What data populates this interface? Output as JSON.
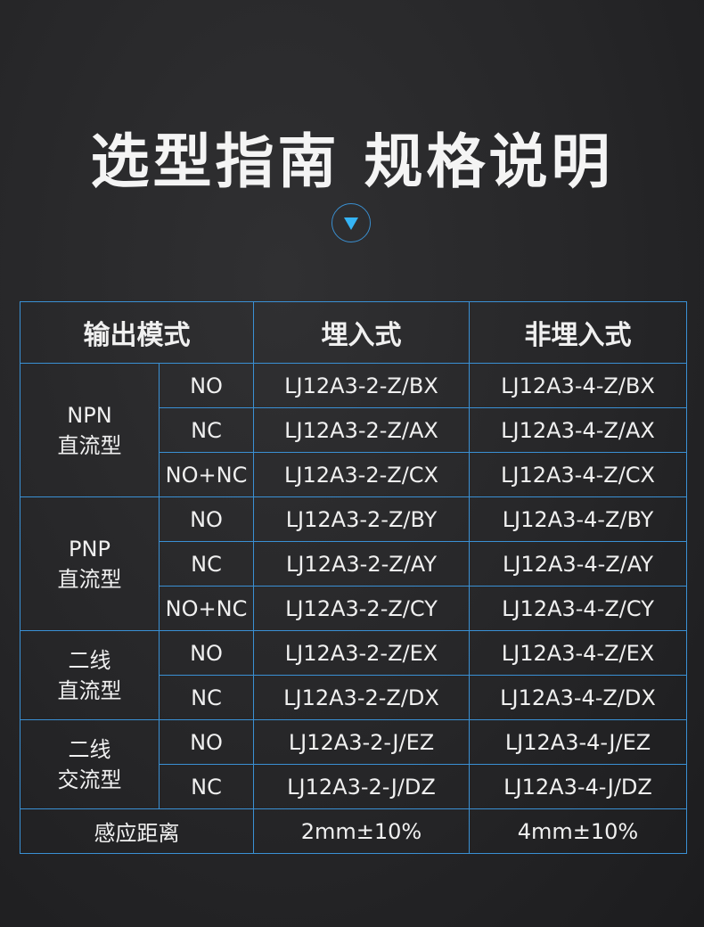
{
  "title": "选型指南 规格说明",
  "icon": "down-triangle-icon",
  "accent": "#35b4f5",
  "table": {
    "headers": [
      "输出模式",
      "埋入式",
      "非埋入式"
    ],
    "groups": [
      {
        "name_line1": "NPN",
        "name_line2": "直流型",
        "rows": [
          {
            "mode": "NO",
            "flush": "LJ12A3-2-Z/BX",
            "nonflush": "LJ12A3-4-Z/BX"
          },
          {
            "mode": "NC",
            "flush": "LJ12A3-2-Z/AX",
            "nonflush": "LJ12A3-4-Z/AX"
          },
          {
            "mode": "NO+NC",
            "flush": "LJ12A3-2-Z/CX",
            "nonflush": "LJ12A3-4-Z/CX"
          }
        ]
      },
      {
        "name_line1": "PNP",
        "name_line2": "直流型",
        "rows": [
          {
            "mode": "NO",
            "flush": "LJ12A3-2-Z/BY",
            "nonflush": "LJ12A3-4-Z/BY"
          },
          {
            "mode": "NC",
            "flush": "LJ12A3-2-Z/AY",
            "nonflush": "LJ12A3-4-Z/AY"
          },
          {
            "mode": "NO+NC",
            "flush": "LJ12A3-2-Z/CY",
            "nonflush": "LJ12A3-4-Z/CY"
          }
        ]
      },
      {
        "name_line1": "二线",
        "name_line2": "直流型",
        "rows": [
          {
            "mode": "NO",
            "flush": "LJ12A3-2-Z/EX",
            "nonflush": "LJ12A3-4-Z/EX"
          },
          {
            "mode": "NC",
            "flush": "LJ12A3-2-Z/DX",
            "nonflush": "LJ12A3-4-Z/DX"
          }
        ]
      },
      {
        "name_line1": "二线",
        "name_line2": "交流型",
        "rows": [
          {
            "mode": "NO",
            "flush": "LJ12A3-2-J/EZ",
            "nonflush": "LJ12A3-4-J/EZ"
          },
          {
            "mode": "NC",
            "flush": "LJ12A3-2-J/DZ",
            "nonflush": "LJ12A3-4-J/DZ"
          }
        ]
      }
    ],
    "footer": {
      "label": "感应距离",
      "flush": "2mm±10%",
      "nonflush": "4mm±10%"
    }
  }
}
